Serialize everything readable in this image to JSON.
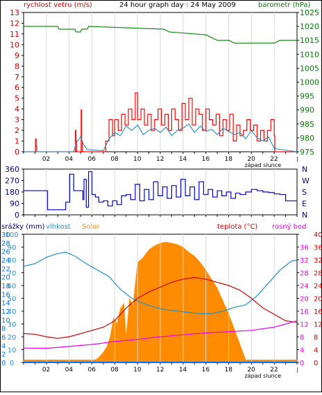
{
  "header": {
    "title": "24 hour graph day : 24 May 2009",
    "left_label": "rychlost vetru (m/s)",
    "right_label": "barometr (hPa)"
  },
  "colors": {
    "wind_speed": "#ff0000",
    "wind_avg": "#1e90c0",
    "pressure": "#008000",
    "direction": "#0000cc",
    "humidity": "#1e90d0",
    "solar": "#ff8c00",
    "temperature": "#cc0000",
    "dewpoint": "#ee00ee",
    "rain": "#0070ff",
    "grid": "#d8d8d8",
    "axis": "#000000"
  },
  "chart_data": [
    {
      "type": "line",
      "title": "24 hour graph day : 24 May 2009",
      "ylabel": "rychlost vetru (m/s)",
      "ylabel_right": "barometr (hPa)",
      "x_ticks": [
        "02",
        "04",
        "06",
        "08",
        "10",
        "12",
        "14",
        "16",
        "18",
        "20",
        "22"
      ],
      "x_range_hours": [
        0,
        24
      ],
      "sunset_label": "západ slunce",
      "ylim": [
        0,
        13
      ],
      "y_ticks": [
        0,
        1,
        2,
        3,
        4,
        5,
        6,
        7,
        8,
        9,
        10,
        11,
        12,
        13
      ],
      "ylim_right": [
        975,
        1025
      ],
      "y_ticks_right": [
        975,
        980,
        985,
        990,
        995,
        1000,
        1005,
        1010,
        1015,
        1020,
        1025
      ],
      "series": [
        {
          "key": "pressure",
          "axis": "right",
          "x": [
            0,
            3,
            3.1,
            4.5,
            4.6,
            5,
            5.1,
            5.6,
            5.7,
            12.3,
            12.8,
            16,
            17,
            18,
            18.5,
            22,
            22.5,
            24
          ],
          "y": [
            1020,
            1020,
            1019,
            1019,
            1018,
            1018,
            1019,
            1019,
            1020,
            1019,
            1018,
            1017,
            1015,
            1015,
            1014,
            1014,
            1015,
            1015
          ]
        },
        {
          "key": "wind_speed",
          "axis": "left",
          "x": [
            0,
            1,
            1.05,
            1.1,
            1.15,
            4.5,
            4.55,
            4.6,
            4.65,
            5,
            5.05,
            5.1,
            5.15,
            7,
            7.2,
            7.5,
            7.8,
            8,
            8.3,
            8.6,
            8.9,
            9.2,
            9.5,
            9.8,
            10,
            10.3,
            10.6,
            10.9,
            11.2,
            11.5,
            11.8,
            12.1,
            12.4,
            12.7,
            13,
            13.3,
            13.6,
            13.9,
            14.2,
            14.5,
            14.8,
            15.1,
            15.4,
            15.7,
            16,
            16.3,
            16.6,
            16.9,
            17.2,
            17.5,
            17.8,
            18.1,
            18.4,
            18.7,
            19,
            19.3,
            19.6,
            19.9,
            20.2,
            20.5,
            20.8,
            21.1,
            21.4,
            21.7,
            22,
            22.05,
            24
          ],
          "y": [
            0,
            0,
            1.2,
            0.5,
            0,
            0,
            2,
            1,
            0,
            0,
            3.9,
            1,
            0,
            0,
            1,
            3,
            1.5,
            3,
            2,
            3.5,
            2.5,
            4,
            3,
            5.5,
            3,
            4,
            2.5,
            3.5,
            2,
            3,
            4,
            2.5,
            3.5,
            2,
            4,
            3,
            2,
            4.5,
            3,
            5,
            2.5,
            4,
            3.5,
            2,
            4,
            3,
            2.5,
            3.5,
            1.5,
            3,
            2,
            3.5,
            1,
            2.5,
            1.5,
            2,
            3,
            2,
            2.5,
            1,
            2,
            1,
            2,
            3,
            1.5,
            0,
            0
          ]
        },
        {
          "key": "wind_avg",
          "axis": "left",
          "x": [
            0,
            4.4,
            4.6,
            5.0,
            5.3,
            5.6,
            7,
            7.5,
            8,
            8.5,
            9,
            9.5,
            10,
            10.5,
            11,
            11.5,
            12,
            12.5,
            13,
            13.5,
            14,
            14.5,
            15,
            15.5,
            16,
            16.5,
            17,
            17.5,
            18,
            18.5,
            19,
            19.5,
            20,
            20.5,
            21,
            21.5,
            22,
            24
          ],
          "y": [
            0,
            0,
            0.8,
            1.4,
            0.6,
            0.2,
            0.1,
            1.2,
            1.8,
            1.5,
            2.4,
            2.0,
            2.5,
            1.6,
            2.0,
            2.2,
            1.8,
            2.3,
            1.5,
            2.0,
            2.2,
            2.6,
            1.8,
            2.4,
            1.9,
            2.1,
            1.6,
            2.2,
            1.9,
            1.6,
            1.8,
            1.2,
            2.0,
            1.3,
            1.0,
            1.4,
            0.3,
            0
          ]
        }
      ]
    },
    {
      "type": "line",
      "ylim": [
        0,
        360
      ],
      "y_ticks": [
        0,
        90,
        180,
        270,
        360
      ],
      "right_labels": [
        "N",
        "W",
        "S",
        "E",
        "N"
      ],
      "x_range_hours": [
        0,
        24
      ],
      "series": [
        {
          "key": "direction",
          "x": [
            0,
            2,
            2.1,
            3.6,
            3.7,
            4,
            4.05,
            4.4,
            4.5,
            5.2,
            5.3,
            5.5,
            5.7,
            6,
            6.3,
            6.6,
            7,
            7.4,
            7.8,
            8.2,
            8.6,
            9,
            9.4,
            9.8,
            10.2,
            10.6,
            11,
            11.4,
            11.8,
            12.2,
            12.6,
            13,
            13.4,
            13.8,
            14.2,
            14.6,
            15,
            15.4,
            15.8,
            16.2,
            16.6,
            17,
            17.4,
            17.8,
            18.2,
            18.6,
            19,
            19.5,
            20,
            20.5,
            21,
            21.5,
            22,
            22.5,
            23,
            24
          ],
          "y": [
            190,
            190,
            40,
            40,
            100,
            100,
            320,
            190,
            190,
            120,
            280,
            60,
            340,
            160,
            140,
            100,
            110,
            70,
            110,
            80,
            150,
            160,
            120,
            240,
            110,
            200,
            120,
            260,
            150,
            220,
            130,
            230,
            140,
            280,
            150,
            220,
            120,
            260,
            160,
            200,
            140,
            190,
            150,
            180,
            130,
            170,
            160,
            180,
            200,
            190,
            180,
            175,
            165,
            160,
            110,
            110
          ]
        }
      ]
    },
    {
      "type": "area",
      "legend": [
        "srážky (mm)",
        "vlhkost",
        "Solar",
        "teplota (°C)",
        "rosný bod"
      ],
      "x_ticks": [
        "02",
        "04",
        "06",
        "08",
        "10",
        "12",
        "14",
        "16",
        "18",
        "20",
        "22"
      ],
      "x_range_hours": [
        0,
        24
      ],
      "sunset_label": "západ slunce",
      "axes": {
        "rain": {
          "ylim": [
            0,
            30
          ],
          "ticks": [
            0,
            2,
            4,
            6,
            8,
            10,
            12,
            14,
            16,
            18,
            20,
            22,
            24,
            26,
            28,
            30
          ]
        },
        "humidity": {
          "ylim": [
            0,
            100
          ],
          "ticks": [
            0,
            10,
            20,
            30,
            40,
            50,
            60,
            70,
            80,
            90,
            100
          ]
        },
        "solar": {
          "ylim": [
            0,
            100
          ],
          "ticks": [
            0,
            6,
            12,
            18,
            24,
            30,
            36,
            42,
            48,
            54,
            60,
            66,
            72,
            78,
            84,
            90
          ],
          "labels": [
            0,
            6,
            12,
            18,
            24,
            30,
            36,
            42,
            48,
            54,
            60,
            66,
            72,
            78,
            84,
            90
          ]
        },
        "temperature": {
          "ylim": [
            0,
            40
          ],
          "ticks": [
            0,
            4,
            8,
            12,
            16,
            20,
            24,
            28,
            32,
            36,
            40
          ]
        },
        "dewpoint": {
          "ylim": [
            0,
            40
          ],
          "ticks": [
            0,
            4,
            8,
            12,
            16,
            20,
            24,
            28,
            32,
            36,
            40
          ]
        }
      },
      "y_tick_columns": {
        "col1": [
          0,
          2,
          4,
          6,
          8,
          10,
          12,
          14,
          16,
          18,
          20,
          22,
          24,
          26,
          28,
          30
        ],
        "col2": [
          0,
          10,
          20,
          30,
          40,
          50,
          60,
          70,
          80,
          90,
          100
        ],
        "col3": [
          0,
          6,
          12,
          18,
          24,
          30,
          36,
          42,
          48,
          54,
          60,
          66,
          72,
          78,
          84,
          90,
          100
        ],
        "right_outer": [
          0,
          4,
          8,
          12,
          16,
          20,
          24,
          28,
          32,
          36,
          40
        ],
        "right_inner": [
          0,
          4,
          8,
          12,
          16,
          20,
          24,
          28,
          32,
          36
        ]
      },
      "series": [
        {
          "key": "humidity",
          "x": [
            0,
            1,
            2,
            3,
            3.7,
            4.5,
            5.5,
            6.5,
            7.5,
            8.5,
            9.5,
            10.5,
            11.5,
            12.5,
            13.5,
            14.5,
            15.5,
            16.5,
            17.5,
            18.5,
            19.5,
            20.5,
            21.5,
            22.5,
            23.5,
            24
          ],
          "y": [
            75,
            77,
            82,
            85,
            86,
            83,
            77,
            72,
            67,
            57,
            50,
            46,
            43,
            41,
            40,
            39,
            38,
            38,
            40,
            43,
            45,
            52,
            62,
            72,
            79,
            80
          ]
        },
        {
          "key": "solar",
          "x": [
            0,
            6.3,
            6.6,
            7,
            7.3,
            7.6,
            7.9,
            8.2,
            8.5,
            8.8,
            9,
            9.3,
            9.6,
            10,
            10.5,
            11,
            11.5,
            12,
            12.5,
            13,
            13.5,
            14,
            14.5,
            15,
            15.5,
            16,
            16.5,
            17,
            17.5,
            18,
            18.5,
            19,
            19.5,
            24
          ],
          "y": [
            2,
            2,
            4,
            8,
            12,
            20,
            35,
            30,
            42,
            46,
            20,
            50,
            44,
            78,
            82,
            88,
            91,
            93,
            94,
            93,
            92,
            90,
            86,
            83,
            78,
            72,
            65,
            58,
            48,
            38,
            26,
            14,
            2,
            2
          ]
        },
        {
          "key": "temperature",
          "x": [
            0,
            1,
            2,
            3,
            4,
            5,
            6,
            7,
            8,
            9,
            10,
            11,
            12,
            13,
            14,
            15,
            16,
            17,
            18,
            19,
            20,
            21,
            22,
            23,
            24
          ],
          "y": [
            9,
            8.8,
            8,
            7.5,
            8,
            9,
            10,
            11,
            13,
            17,
            20,
            22,
            23.5,
            25,
            26,
            26.5,
            26,
            25,
            24,
            22.5,
            20,
            17,
            15,
            13,
            12.5
          ]
        },
        {
          "key": "dewpoint",
          "x": [
            0,
            2,
            4,
            6,
            8,
            10,
            12,
            14,
            16,
            18,
            20,
            22,
            24
          ],
          "y": [
            4.5,
            4.4,
            5,
            5.6,
            6.5,
            7.2,
            8,
            8.6,
            9.2,
            9.6,
            10,
            11,
            13
          ]
        },
        {
          "key": "rain",
          "x": [
            0,
            24
          ],
          "y": [
            0,
            0
          ]
        }
      ]
    }
  ]
}
